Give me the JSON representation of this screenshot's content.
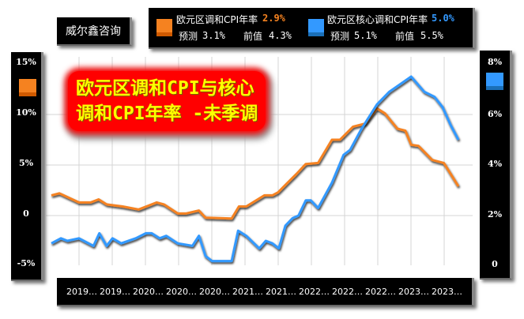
{
  "brand": "威尔鑫咨询",
  "title_lines": [
    "欧元区调和CPI与核心",
    "调和CPI年率 -未季调"
  ],
  "legend": [
    {
      "name": "欧元区调和CPI年率",
      "value": "2.9%",
      "forecast_label": "预测",
      "forecast": "3.1%",
      "previous_label": "前值",
      "previous": "4.3%",
      "color": "#f58220",
      "dark": "#d05a00"
    },
    {
      "name": "欧元区核心调和CPI年率",
      "value": "5.0%",
      "forecast_label": "预测",
      "forecast": "5.1%",
      "previous_label": "前值",
      "previous": "5.5%",
      "color": "#3399ff",
      "dark": "#1a6fb8"
    }
  ],
  "chart_data": {
    "type": "line",
    "title": "欧元区调和CPI与核心调和CPI年率 -未季调",
    "x_unit": "month index from start of 2019",
    "x_ticks": [
      "2019…",
      "2019…",
      "2020…",
      "2020…",
      "2020…",
      "2021…",
      "2021…",
      "2022…",
      "2022…",
      "2022…",
      "2023…",
      "2023…"
    ],
    "left_axis": {
      "ticks": [
        "15%",
        "10%",
        "5%",
        "0",
        "-5%"
      ],
      "range": [
        -5,
        15
      ]
    },
    "right_axis": {
      "ticks": [
        "8%",
        "6%",
        "4%",
        "2%",
        "0"
      ],
      "range": [
        0,
        8
      ]
    },
    "grid": true,
    "series": [
      {
        "name": "欧元区调和CPI年率",
        "axis": "left",
        "color": "#f58220",
        "points": [
          [
            0,
            2.0
          ],
          [
            1.1,
            2.2
          ],
          [
            3.8,
            1.3
          ],
          [
            5.4,
            1.3
          ],
          [
            6.5,
            1.6
          ],
          [
            7.6,
            1.1
          ],
          [
            9.8,
            0.9
          ],
          [
            12,
            0.6
          ],
          [
            14.5,
            1.3
          ],
          [
            15.5,
            1.1
          ],
          [
            17.4,
            0.2
          ],
          [
            18.5,
            0.2
          ],
          [
            20.3,
            0.5
          ],
          [
            21.2,
            -0.2
          ],
          [
            24.8,
            -0.3
          ],
          [
            25.8,
            0.9
          ],
          [
            26.8,
            0.9
          ],
          [
            29.3,
            2.0
          ],
          [
            30.4,
            2.0
          ],
          [
            31.2,
            2.3
          ],
          [
            32.3,
            3.1
          ],
          [
            33.7,
            4.1
          ],
          [
            35,
            5.1
          ],
          [
            36.7,
            5.2
          ],
          [
            38.6,
            7.5
          ],
          [
            39.7,
            7.5
          ],
          [
            41.5,
            8.8
          ],
          [
            43.2,
            9.1
          ],
          [
            44.8,
            10.6
          ],
          [
            45.9,
            10.1
          ],
          [
            47.6,
            8.6
          ],
          [
            48.7,
            8.4
          ],
          [
            49.5,
            7.0
          ],
          [
            50.5,
            6.9
          ],
          [
            52.4,
            5.5
          ],
          [
            54,
            5.2
          ],
          [
            56,
            2.9
          ]
        ]
      },
      {
        "name": "欧元区核心调和CPI年率",
        "axis": "right",
        "color": "#3399ff",
        "points": [
          [
            0,
            0.9
          ],
          [
            1.3,
            1.1
          ],
          [
            2.2,
            1.0
          ],
          [
            3.8,
            1.1
          ],
          [
            5.8,
            0.8
          ],
          [
            6.6,
            1.3
          ],
          [
            7.6,
            0.8
          ],
          [
            8.4,
            1.1
          ],
          [
            9.6,
            0.9
          ],
          [
            11.6,
            1.1
          ],
          [
            13,
            1.3
          ],
          [
            13.8,
            1.3
          ],
          [
            14.9,
            1.1
          ],
          [
            15.8,
            1.2
          ],
          [
            17.4,
            0.9
          ],
          [
            19.4,
            0.8
          ],
          [
            20.3,
            1.2
          ],
          [
            21.2,
            0.4
          ],
          [
            22.1,
            0.2
          ],
          [
            24.8,
            0.2
          ],
          [
            25.7,
            1.4
          ],
          [
            26.8,
            1.2
          ],
          [
            28.6,
            0.7
          ],
          [
            29.5,
            1.0
          ],
          [
            30.4,
            0.9
          ],
          [
            31.3,
            0.7
          ],
          [
            32.2,
            1.6
          ],
          [
            33.2,
            1.9
          ],
          [
            34,
            2.0
          ],
          [
            35,
            2.6
          ],
          [
            35.7,
            2.6
          ],
          [
            36.7,
            2.3
          ],
          [
            38.6,
            3.3
          ],
          [
            40.2,
            4.4
          ],
          [
            41.1,
            4.6
          ],
          [
            42.6,
            5.4
          ],
          [
            44.8,
            6.4
          ],
          [
            46.5,
            6.9
          ],
          [
            48,
            7.2
          ],
          [
            49.5,
            7.5
          ],
          [
            51.3,
            6.9
          ],
          [
            52.7,
            6.7
          ],
          [
            53.8,
            6.3
          ],
          [
            54.9,
            5.6
          ],
          [
            56,
            5.0
          ]
        ]
      }
    ]
  }
}
